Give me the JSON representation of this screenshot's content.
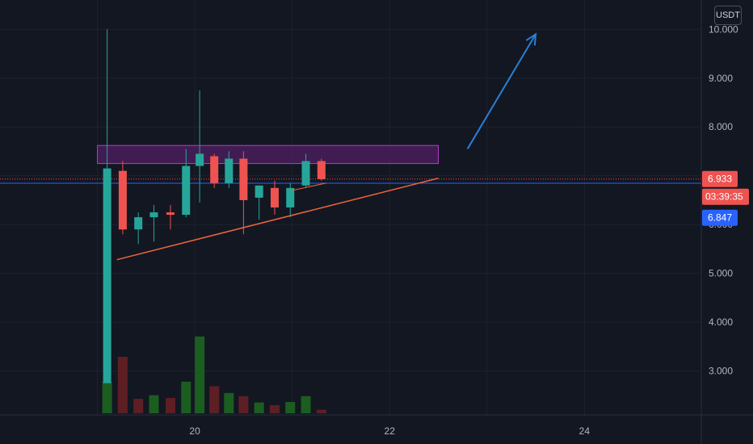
{
  "currency_button": "USDT",
  "colors": {
    "background": "#131722",
    "grid": "#1e222d",
    "up": "#26a69a",
    "down": "#ef5350",
    "volume_up": "#1b5e20",
    "volume_down": "#5d1f24",
    "current_price_line": "#2962ff",
    "resistance_box_fill": "#4a1d5c",
    "resistance_box_stroke": "#b43cc8",
    "trendline": "#f0643c",
    "arrow": "#2a7fd4"
  },
  "price_tags": {
    "last_price": "6.933",
    "countdown": "03:39:35",
    "line_price": "6.847"
  },
  "chart_data": {
    "type": "candlestick",
    "y_axis": {
      "ticks": [
        "10.000",
        "9.000",
        "8.000",
        "6.000",
        "5.000",
        "4.000",
        "3.000"
      ],
      "range": [
        2.1,
        10.6
      ]
    },
    "x_axis": {
      "ticks": [
        "20",
        "22",
        "24"
      ],
      "range_days": [
        18.0,
        25.2
      ]
    },
    "grid": true,
    "candles": [
      {
        "day": 19.1,
        "o": 2.75,
        "h": 10.0,
        "l": 2.75,
        "c": 7.15
      },
      {
        "day": 19.26,
        "o": 7.1,
        "h": 7.3,
        "l": 5.8,
        "c": 5.9
      },
      {
        "day": 19.42,
        "o": 5.9,
        "h": 6.25,
        "l": 5.6,
        "c": 6.15
      },
      {
        "day": 19.58,
        "o": 6.15,
        "h": 6.4,
        "l": 5.65,
        "c": 6.25
      },
      {
        "day": 19.75,
        "o": 6.25,
        "h": 6.4,
        "l": 5.9,
        "c": 6.2
      },
      {
        "day": 19.91,
        "o": 6.2,
        "h": 7.55,
        "l": 6.15,
        "c": 7.2
      },
      {
        "day": 20.05,
        "o": 7.2,
        "h": 8.75,
        "l": 6.45,
        "c": 7.45
      },
      {
        "day": 20.2,
        "o": 7.4,
        "h": 7.45,
        "l": 6.75,
        "c": 6.85
      },
      {
        "day": 20.35,
        "o": 6.85,
        "h": 7.5,
        "l": 6.75,
        "c": 7.35
      },
      {
        "day": 20.5,
        "o": 7.35,
        "h": 7.5,
        "l": 5.8,
        "c": 6.5
      },
      {
        "day": 20.66,
        "o": 6.55,
        "h": 6.8,
        "l": 6.1,
        "c": 6.8
      },
      {
        "day": 20.82,
        "o": 6.75,
        "h": 6.9,
        "l": 6.2,
        "c": 6.35
      },
      {
        "day": 20.98,
        "o": 6.35,
        "h": 6.85,
        "l": 6.15,
        "c": 6.75
      },
      {
        "day": 21.14,
        "o": 6.8,
        "h": 7.45,
        "l": 6.75,
        "c": 7.3
      },
      {
        "day": 21.3,
        "o": 7.3,
        "h": 7.35,
        "l": 6.9,
        "c": 6.93
      }
    ],
    "volume": [
      {
        "day": 19.1,
        "v": 0.7,
        "up": true
      },
      {
        "day": 19.26,
        "v": 1.25,
        "up": false
      },
      {
        "day": 19.42,
        "v": 0.32,
        "up": false
      },
      {
        "day": 19.58,
        "v": 0.4,
        "up": true
      },
      {
        "day": 19.75,
        "v": 0.34,
        "up": false
      },
      {
        "day": 19.91,
        "v": 0.7,
        "up": true
      },
      {
        "day": 20.05,
        "v": 1.7,
        "up": true
      },
      {
        "day": 20.2,
        "v": 0.6,
        "up": false
      },
      {
        "day": 20.35,
        "v": 0.45,
        "up": true
      },
      {
        "day": 20.5,
        "v": 0.38,
        "up": false
      },
      {
        "day": 20.66,
        "v": 0.24,
        "up": true
      },
      {
        "day": 20.82,
        "v": 0.18,
        "up": false
      },
      {
        "day": 20.98,
        "v": 0.25,
        "up": true
      },
      {
        "day": 21.14,
        "v": 0.38,
        "up": true
      },
      {
        "day": 21.3,
        "v": 0.08,
        "up": false
      }
    ],
    "current_price_line": 6.847,
    "last_price_line": 6.933,
    "drawings": {
      "resistance_box": {
        "day_start": 19.0,
        "day_end": 22.5,
        "price_low": 7.25,
        "price_high": 7.62
      },
      "ascending_trendline": {
        "day_start": 19.2,
        "price_start": 5.28,
        "day_end": 22.5,
        "price_end": 6.95
      },
      "short_trendline": {
        "day_start": 21.0,
        "price_start": 6.7,
        "day_end": 21.35,
        "price_end": 6.85
      },
      "breakout_arrow": {
        "day_start": 22.8,
        "price_start": 7.55,
        "day_end": 23.5,
        "price_end": 9.9
      }
    }
  }
}
